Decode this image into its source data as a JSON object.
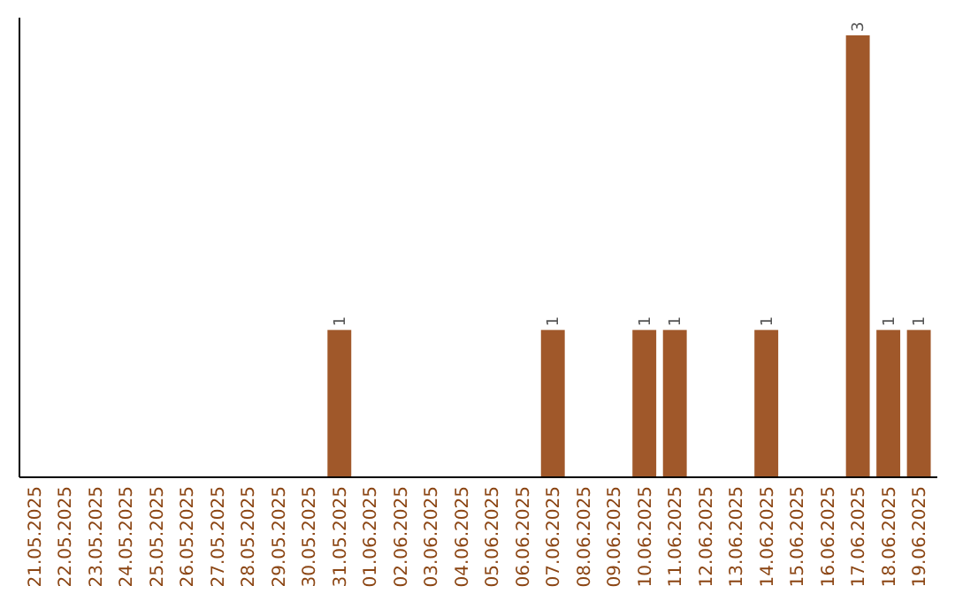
{
  "chart_data": {
    "type": "bar",
    "categories": [
      "21.05.2025",
      "22.05.2025",
      "23.05.2025",
      "24.05.2025",
      "25.05.2025",
      "26.05.2025",
      "27.05.2025",
      "28.05.2025",
      "29.05.2025",
      "30.05.2025",
      "31.05.2025",
      "01.06.2025",
      "02.06.2025",
      "03.06.2025",
      "04.06.2025",
      "05.06.2025",
      "06.06.2025",
      "07.06.2025",
      "08.06.2025",
      "09.06.2025",
      "10.06.2025",
      "11.06.2025",
      "12.06.2025",
      "13.06.2025",
      "14.06.2025",
      "15.06.2025",
      "16.06.2025",
      "17.06.2025",
      "18.06.2025",
      "19.06.2025"
    ],
    "values": [
      0,
      0,
      0,
      0,
      0,
      0,
      0,
      0,
      0,
      0,
      1,
      0,
      0,
      0,
      0,
      0,
      0,
      1,
      0,
      0,
      1,
      1,
      0,
      0,
      1,
      0,
      0,
      3,
      1,
      1
    ],
    "value_labels": [
      null,
      null,
      null,
      null,
      null,
      null,
      null,
      null,
      null,
      null,
      "1",
      null,
      null,
      null,
      null,
      null,
      null,
      "1",
      null,
      null,
      "1",
      "1",
      null,
      null,
      "1",
      null,
      null,
      "3",
      "1",
      "1"
    ],
    "color": "#a0582a",
    "tick_labels": "x"
  }
}
